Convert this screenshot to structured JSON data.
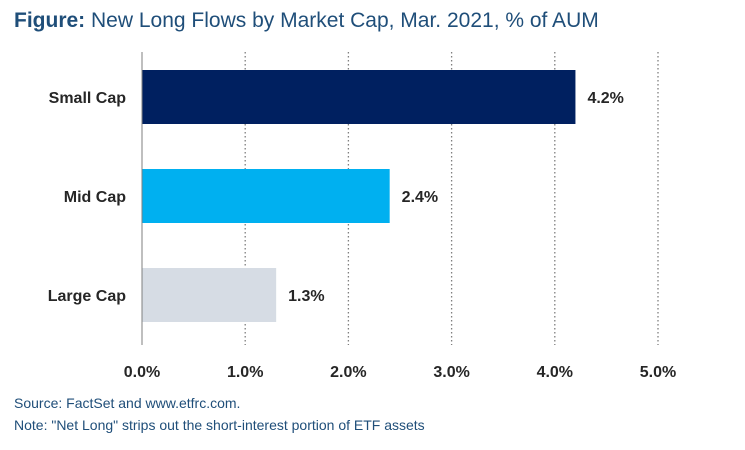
{
  "title": {
    "prefix": "Figure:",
    "text": "New Long Flows by Market Cap, Mar. 2021, % of AUM"
  },
  "source": "Source: FactSet and www.etfrc.com.",
  "note": "Note: \"Net Long\" strips out the short-interest portion of ETF assets",
  "chart_data": {
    "type": "bar",
    "orientation": "horizontal",
    "categories": [
      "Small Cap",
      "Mid Cap",
      "Large Cap"
    ],
    "values": [
      4.2,
      2.4,
      1.3
    ],
    "value_labels": [
      "4.2%",
      "2.4%",
      "1.3%"
    ],
    "colors": [
      "#002060",
      "#00b0f0",
      "#d6dce4"
    ],
    "xlim": [
      0,
      5
    ],
    "xticks": [
      0,
      1,
      2,
      3,
      4,
      5
    ],
    "xtick_labels": [
      "0.0%",
      "1.0%",
      "2.0%",
      "3.0%",
      "4.0%",
      "5.0%"
    ],
    "grid": "vertical dotted",
    "legend": "none"
  }
}
